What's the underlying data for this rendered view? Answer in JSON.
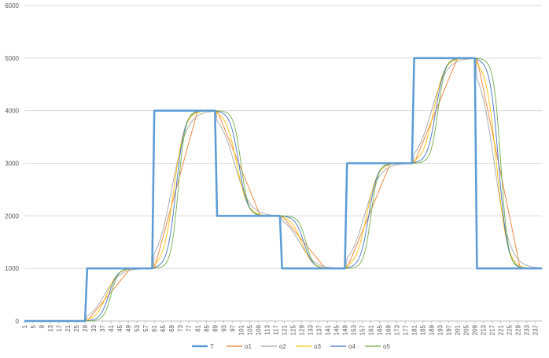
{
  "chart_data": {
    "type": "line",
    "title": "",
    "xlabel": "",
    "ylabel": "",
    "ylim": [
      0,
      6000
    ],
    "yticks": [
      0,
      1000,
      2000,
      3000,
      4000,
      5000,
      6000
    ],
    "xlim": [
      1,
      240
    ],
    "xticks": [
      1,
      5,
      9,
      13,
      17,
      21,
      25,
      29,
      33,
      37,
      41,
      45,
      49,
      53,
      57,
      61,
      65,
      69,
      73,
      77,
      81,
      85,
      89,
      93,
      97,
      101,
      105,
      109,
      113,
      117,
      121,
      125,
      129,
      133,
      137,
      141,
      145,
      149,
      153,
      157,
      161,
      165,
      169,
      173,
      177,
      181,
      185,
      189,
      193,
      197,
      201,
      205,
      209,
      213,
      217,
      221,
      225,
      229,
      233,
      237
    ],
    "grid": true,
    "legend_position": "bottom",
    "series": [
      {
        "name": "T",
        "color": "#5b9bd5",
        "width": 2.5,
        "style": "step",
        "steps": [
          [
            1,
            0
          ],
          [
            30,
            1000
          ],
          [
            61,
            4000
          ],
          [
            90,
            2000
          ],
          [
            120,
            1000
          ],
          [
            150,
            3000
          ],
          [
            181,
            5000
          ],
          [
            210,
            1000
          ]
        ]
      },
      {
        "name": "o1",
        "color": "#ed7d31",
        "width": 0.9,
        "style": "ramp",
        "lag": 0,
        "duration": 20
      },
      {
        "name": "o2",
        "color": "#a5a5a5",
        "width": 0.9,
        "style": "sigmoid",
        "lag": 0,
        "k": 0.28,
        "delay": 8
      },
      {
        "name": "o3",
        "color": "#ffc000",
        "width": 0.9,
        "style": "sigmoid",
        "lag": 0,
        "k": 0.4,
        "delay": 9
      },
      {
        "name": "o4",
        "color": "#4472c4",
        "width": 0.9,
        "style": "sigmoid",
        "lag": 0,
        "k": 0.5,
        "delay": 10
      },
      {
        "name": "o5",
        "color": "#70ad47",
        "width": 0.9,
        "style": "sigmoid",
        "lag": 0,
        "k": 0.6,
        "delay": 11
      }
    ]
  }
}
